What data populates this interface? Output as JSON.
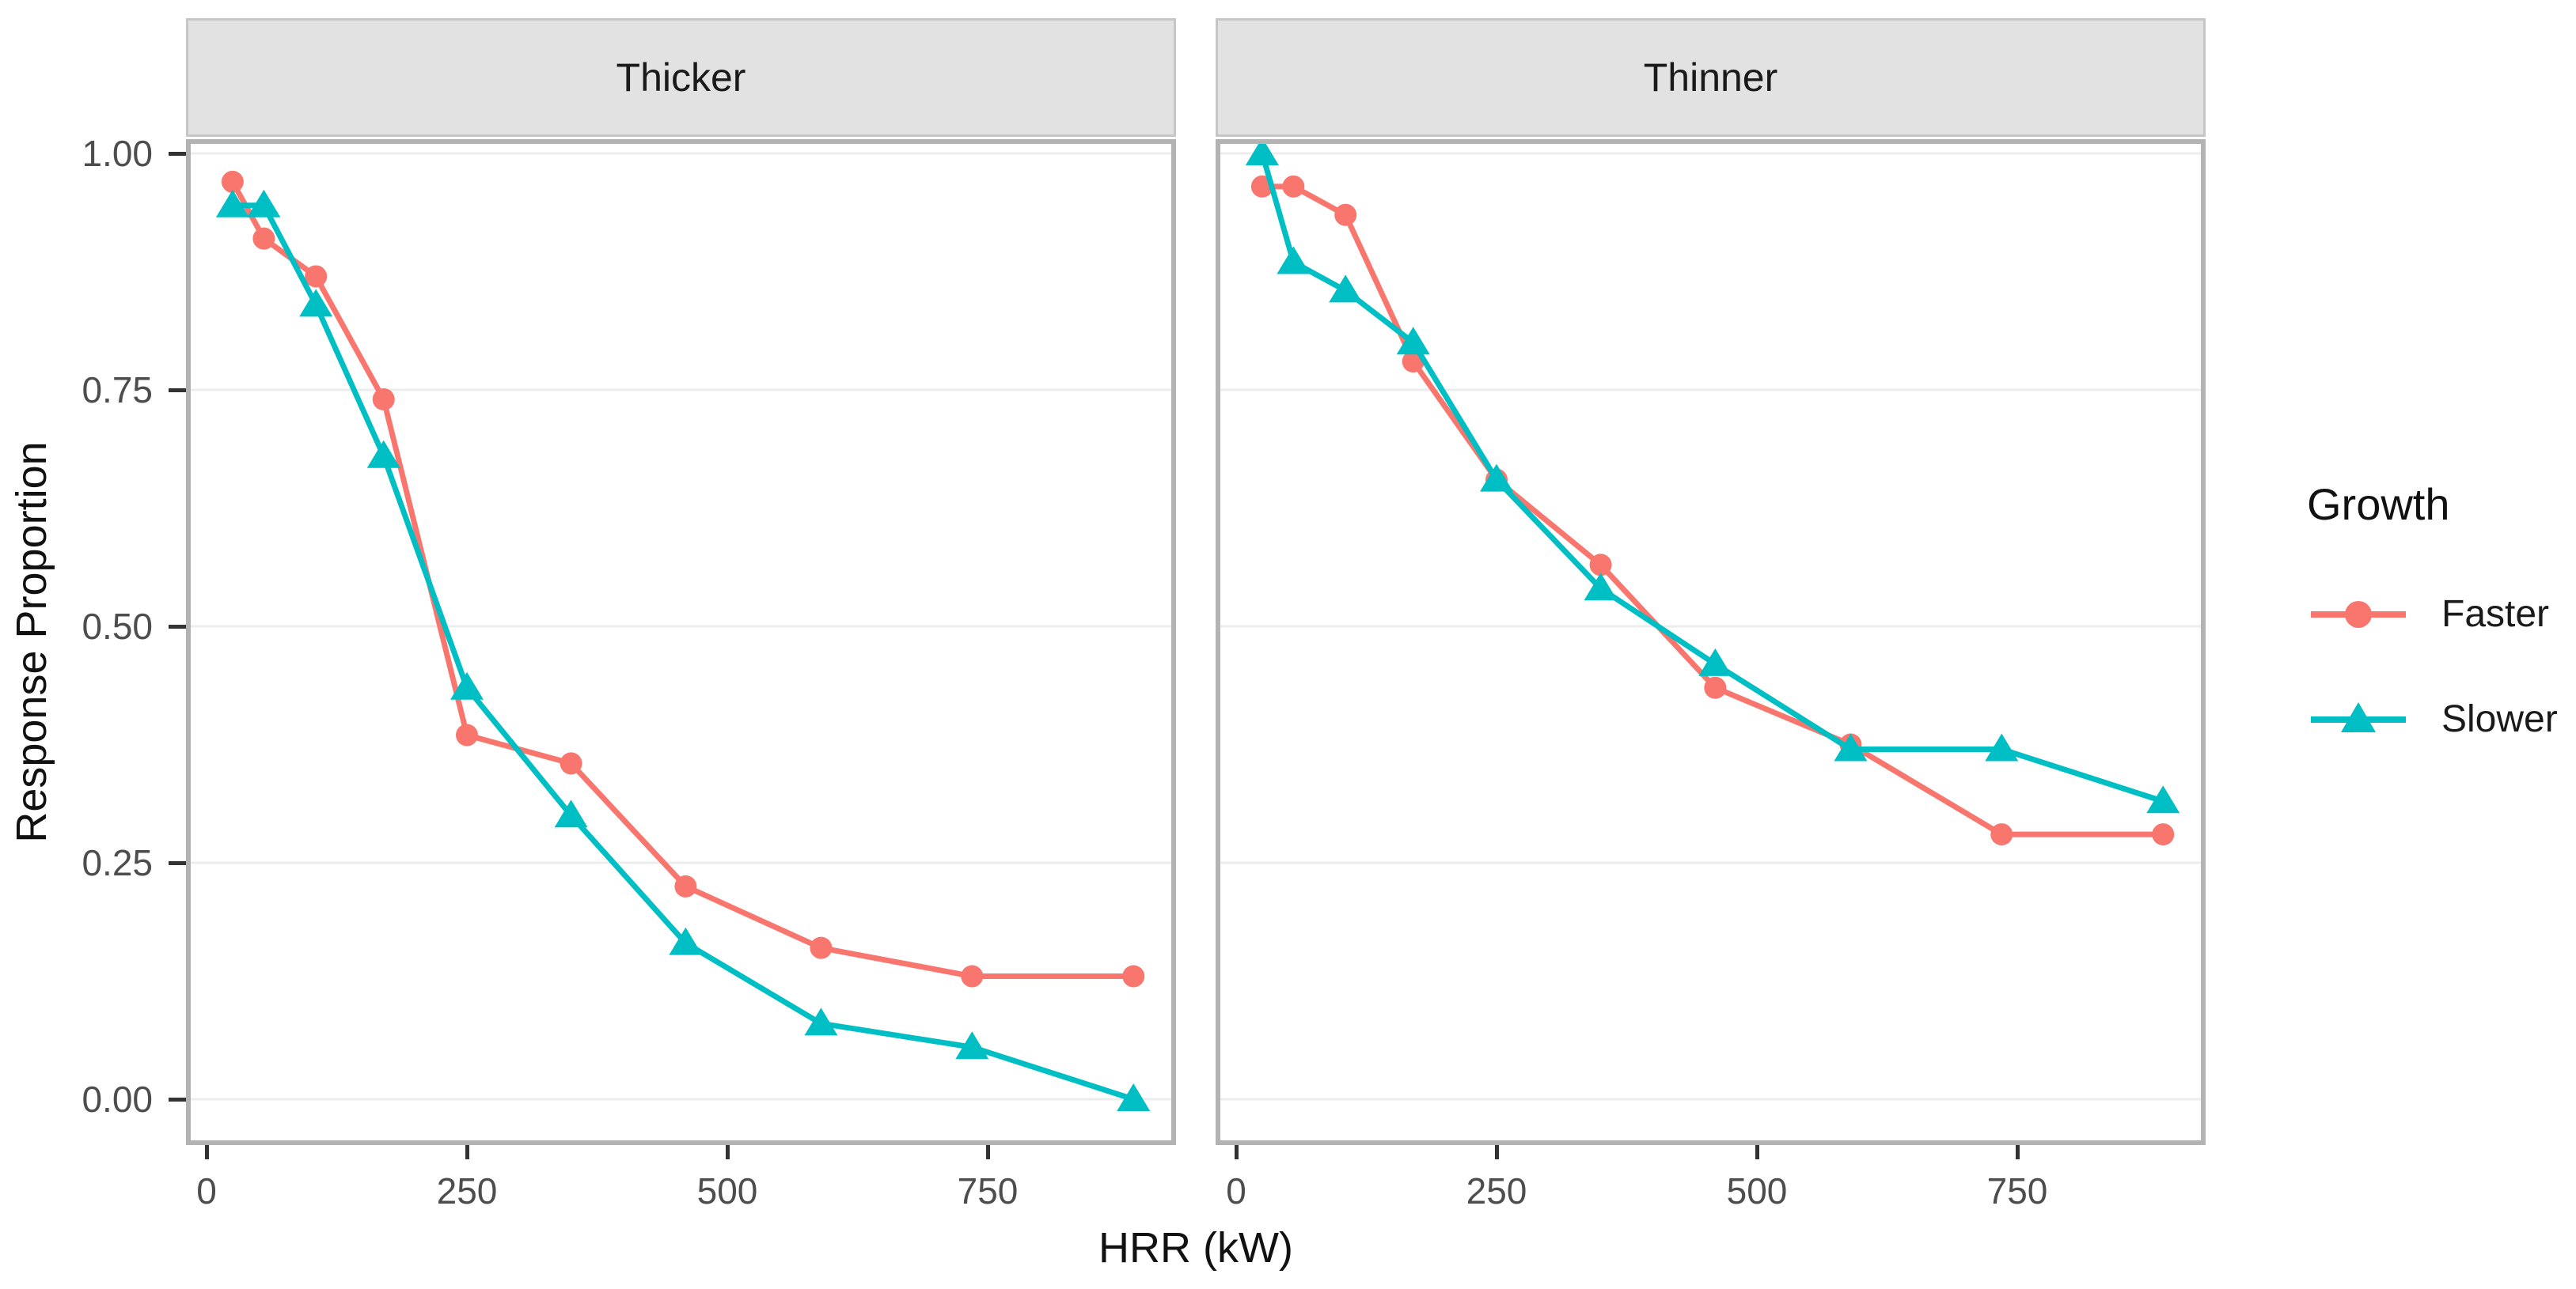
{
  "y_axis": {
    "title": "Response Proportion",
    "ticks": [
      "1.00",
      "0.75",
      "0.50",
      "0.25",
      "0.00"
    ],
    "tick_values": [
      1.0,
      0.75,
      0.5,
      0.25,
      0.0
    ]
  },
  "x_axis": {
    "title": "HRR (kW)",
    "ticks": [
      "0",
      "250",
      "500",
      "750"
    ],
    "tick_values": [
      0,
      250,
      500,
      750
    ]
  },
  "legend": {
    "title": "Growth",
    "items": [
      {
        "label": "Faster",
        "color": "#F8766D",
        "marker": "circle"
      },
      {
        "label": "Slower",
        "color": "#00BFC4",
        "marker": "triangle"
      }
    ]
  },
  "facets": [
    "Thicker",
    "Thinner"
  ],
  "style_colors": {
    "strip_background": "#E2E2E2",
    "panel_border": "#B3B3B3",
    "gridline": "#ECECEC",
    "tick_mark": "#333333",
    "tick_label": "#4D4D4D"
  },
  "chart_data": {
    "type": "line",
    "title": "",
    "xlabel": "HRR (kW)",
    "ylabel": "Response Proportion",
    "x": [
      25,
      55,
      105,
      170,
      250,
      350,
      460,
      590,
      735,
      890
    ],
    "xlim": [
      -20,
      935
    ],
    "ylim": [
      0,
      1
    ],
    "grid": "horizontal-major-only",
    "legend_position": "right",
    "panels": [
      {
        "facet": "Thicker",
        "series": [
          {
            "name": "Faster",
            "color": "#F8766D",
            "marker": "circle",
            "values": [
              0.97,
              0.91,
              0.87,
              0.74,
              0.385,
              0.355,
              0.225,
              0.16,
              0.13,
              0.13
            ]
          },
          {
            "name": "Slower",
            "color": "#00BFC4",
            "marker": "triangle",
            "values": [
              0.945,
              0.945,
              0.84,
              0.68,
              0.435,
              0.3,
              0.165,
              0.08,
              0.055,
              0.0
            ]
          }
        ]
      },
      {
        "facet": "Thinner",
        "series": [
          {
            "name": "Faster",
            "color": "#F8766D",
            "marker": "circle",
            "values": [
              0.965,
              0.965,
              0.935,
              0.78,
              0.655,
              0.565,
              0.435,
              0.375,
              0.28,
              0.28
            ]
          },
          {
            "name": "Slower",
            "color": "#00BFC4",
            "marker": "triangle",
            "values": [
              1.0,
              0.885,
              0.855,
              0.8,
              0.655,
              0.54,
              0.46,
              0.37,
              0.37,
              0.315
            ]
          }
        ]
      }
    ]
  }
}
